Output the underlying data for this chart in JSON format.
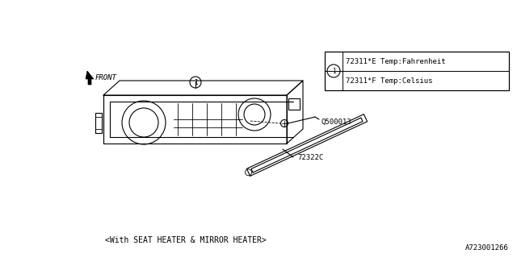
{
  "bg_color": "#ffffff",
  "line_color": "#000000",
  "bottom_text": "<With SEAT HEATER & MIRROR HEATER>",
  "part_number_label": "A723001266",
  "legend_items": [
    {
      "code": "72311*E",
      "desc": "Temp:Fahrenheit"
    },
    {
      "code": "72311*F",
      "desc": "Temp:Celsius"
    }
  ],
  "label_Q500013": "Q500013",
  "label_72322C": "72322C",
  "label_FRONT": "FRONT"
}
